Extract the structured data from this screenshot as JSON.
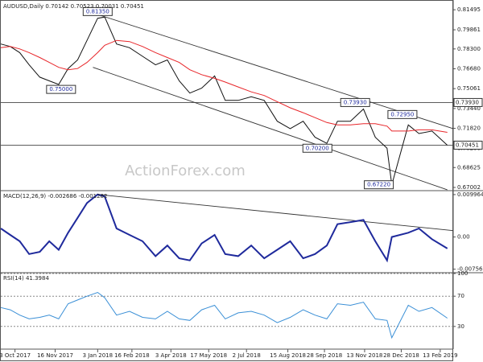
{
  "chart_data": [
    {
      "type": "line",
      "title": "AUDUSD,Daily 0.70142 0.70523 0.70031 0.70451",
      "watermark": "ActionForex.com",
      "x": [
        0,
        8,
        16,
        24,
        33,
        41,
        49,
        57,
        65,
        73,
        82,
        88,
        98,
        109,
        120,
        131,
        141,
        151,
        160,
        170,
        181,
        190,
        201,
        212,
        223,
        234,
        245,
        256,
        266,
        276,
        285,
        296,
        307,
        317,
        327,
        331,
        345,
        354,
        365,
        378
      ],
      "series": [
        {
          "color": "#111111",
          "values": [
            0.787,
            0.785,
            0.78,
            0.77,
            0.76,
            0.757,
            0.754,
            0.767,
            0.774,
            0.79,
            0.808,
            0.809,
            0.787,
            0.784,
            0.777,
            0.77,
            0.774,
            0.757,
            0.747,
            0.751,
            0.761,
            0.741,
            0.741,
            0.744,
            0.741,
            0.724,
            0.718,
            0.724,
            0.711,
            0.706,
            0.724,
            0.724,
            0.734,
            0.711,
            0.702,
            0.6722,
            0.721,
            0.714,
            0.716,
            0.7045
          ]
        },
        {
          "color": "#e8262a",
          "values": [
            0.784,
            0.785,
            0.783,
            0.78,
            0.776,
            0.772,
            0.768,
            0.766,
            0.767,
            0.772,
            0.78,
            0.786,
            0.79,
            0.789,
            0.785,
            0.78,
            0.776,
            0.772,
            0.766,
            0.762,
            0.759,
            0.756,
            0.752,
            0.748,
            0.745,
            0.74,
            0.735,
            0.731,
            0.727,
            0.723,
            0.721,
            0.721,
            0.722,
            0.722,
            0.72,
            0.716,
            0.716,
            0.717,
            0.717,
            0.715
          ]
        }
      ],
      "trendlines": [
        {
          "x": [
            82,
            383
          ],
          "values": [
            0.8111,
            0.718
          ]
        },
        {
          "x": [
            78,
            378
          ],
          "values": [
            0.768,
            0.6681
          ]
        }
      ],
      "levels": [
        {
          "value": 0.7393,
          "label": "0.73930"
        },
        {
          "value": 0.70451,
          "label": "0.70451"
        }
      ],
      "annotations": [
        {
          "label": "0.81350",
          "x": 82,
          "value": 0.8135
        },
        {
          "label": "0.75000",
          "x": 51,
          "value": 0.75
        },
        {
          "label": "0.73930",
          "x": 300,
          "value": 0.7393
        },
        {
          "label": "0.72950",
          "x": 340,
          "value": 0.7295
        },
        {
          "label": "0.70200",
          "x": 268,
          "value": 0.702
        },
        {
          "label": "0.67220",
          "x": 320,
          "value": 0.6722
        }
      ],
      "xlim": [
        0,
        383
      ],
      "ylim": [
        0.6674,
        0.8216
      ],
      "yticks": [
        0.81495,
        0.79861,
        {
          "value": 0.783,
          "label": "0.78300"
        },
        {
          "value": 0.7668,
          "label": "0.76680"
        },
        0.75061,
        {
          "value": 0.7344,
          "label": "0.73440"
        },
        {
          "value": 0.7182,
          "label": "0.71820"
        },
        {
          "value": 0.702,
          "label": "0.70200"
        },
        0.68625,
        0.67002
      ],
      "grid": false
    },
    {
      "type": "line",
      "title": "MACD(12,26,9) -0.002686 -0.001282",
      "x": [
        0,
        8,
        16,
        24,
        33,
        41,
        49,
        57,
        65,
        73,
        82,
        88,
        98,
        109,
        120,
        131,
        141,
        151,
        160,
        170,
        181,
        190,
        201,
        212,
        223,
        234,
        245,
        256,
        266,
        276,
        285,
        296,
        307,
        317,
        327,
        331,
        345,
        354,
        365,
        378
      ],
      "series": [
        {
          "color": "#1f2a9c",
          "values": [
            0.002,
            0.0005,
            -0.001,
            -0.004,
            -0.0035,
            -0.001,
            -0.003,
            0.001,
            0.0045,
            0.008,
            0.01,
            0.0095,
            0.002,
            0.0005,
            -0.001,
            -0.0045,
            -0.002,
            -0.005,
            -0.0055,
            -0.0015,
            0.0005,
            -0.004,
            -0.0045,
            -0.002,
            -0.005,
            -0.003,
            -0.001,
            -0.005,
            -0.004,
            -0.002,
            0.003,
            0.0035,
            0.004,
            -0.001,
            -0.0055,
            0,
            0.001,
            0.002,
            -0.0005,
            -0.0027
          ]
        }
      ],
      "trendlines": [
        {
          "x": [
            82,
            383
          ],
          "values": [
            0.01,
            0.0015
          ]
        }
      ],
      "xlim": [
        0,
        383
      ],
      "ylim": [
        -0.0082,
        0.0107
      ],
      "yticks": [
        0.009964,
        {
          "value": 0,
          "label": "0.00"
        },
        -0.00756
      ],
      "grid": false
    },
    {
      "type": "line",
      "title": "RSI(14) 41.3984",
      "x": [
        0,
        8,
        16,
        24,
        33,
        41,
        49,
        57,
        65,
        73,
        82,
        88,
        98,
        109,
        120,
        131,
        141,
        151,
        160,
        170,
        181,
        190,
        201,
        212,
        223,
        234,
        245,
        256,
        266,
        276,
        285,
        296,
        307,
        317,
        327,
        331,
        345,
        354,
        365,
        378
      ],
      "series": [
        {
          "color": "#3a8fd6",
          "values": [
            55,
            52,
            45,
            40,
            42,
            45,
            40,
            60,
            65,
            70,
            75,
            68,
            45,
            50,
            42,
            40,
            50,
            40,
            38,
            52,
            58,
            40,
            48,
            50,
            45,
            35,
            42,
            52,
            45,
            40,
            60,
            58,
            62,
            40,
            38,
            15,
            58,
            50,
            55,
            41
          ]
        }
      ],
      "xlim": [
        0,
        383
      ],
      "ylim": [
        0,
        100
      ],
      "yticks": [
        100,
        70,
        30
      ],
      "grid": true,
      "grid_style": "dashed",
      "xticks": [
        {
          "value": 12,
          "label": "3 Oct 2017"
        },
        {
          "value": 46,
          "label": "16 Nov 2017"
        },
        {
          "value": 82,
          "label": "3 Jan 2018"
        },
        {
          "value": 111,
          "label": "16 Feb 2018"
        },
        {
          "value": 144,
          "label": "3 Apr 2018"
        },
        {
          "value": 176,
          "label": "17 May 2018"
        },
        {
          "value": 208,
          "label": "2 Jul 2018"
        },
        {
          "value": 243,
          "label": "15 Aug 2018"
        },
        {
          "value": 274,
          "label": "28 Sep 2018"
        },
        {
          "value": 308,
          "label": "13 Nov 2018"
        },
        {
          "value": 339,
          "label": "28 Dec 2018"
        },
        {
          "value": 372,
          "label": "13 Feb 2019"
        }
      ]
    }
  ]
}
